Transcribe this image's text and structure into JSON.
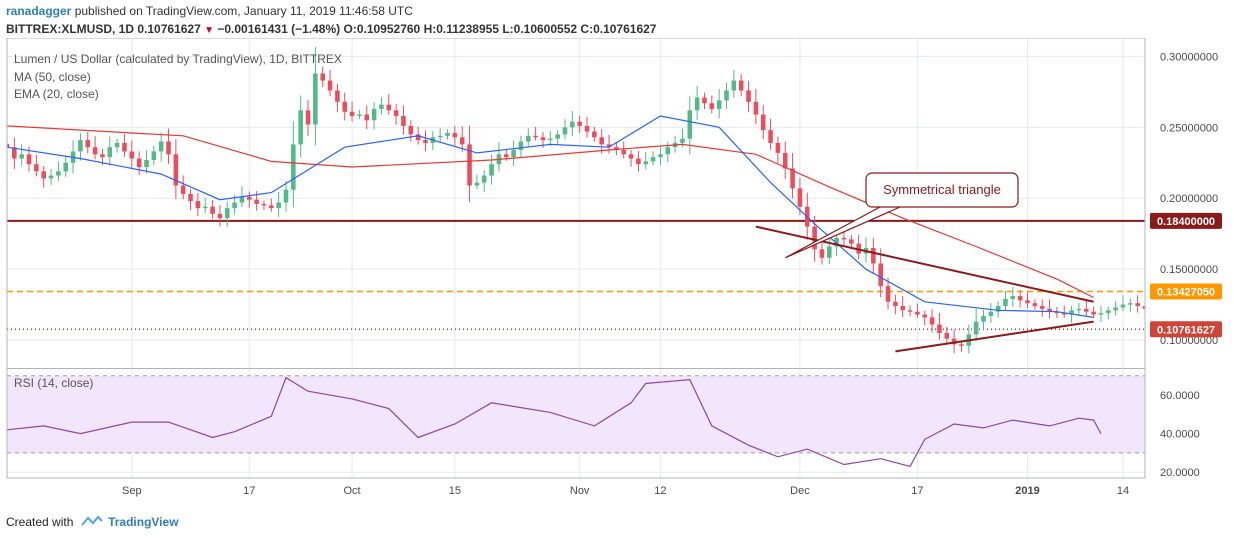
{
  "publish": {
    "author": "ranadagger",
    "text": "published on TradingView.com, January 11, 2019 11:46:58 UTC"
  },
  "quote": {
    "symbol": "BITTREX:XLMUSD, 1D",
    "last": "0.10761627",
    "change": "−0.00161431 (−1.48%)",
    "o_label": "O:",
    "o": "0.10952760",
    "h_label": "H:",
    "h": "0.11238955",
    "l_label": "L:",
    "l": "0.10600552",
    "c_label": "C:",
    "c": "0.10761627",
    "down_color": "#d0021b"
  },
  "indicators": {
    "title": "Lumen / US Dollar (calculated by TradingView), 1D, BITTREX",
    "ma": "MA (50, close)",
    "ema": "EMA (20, close)",
    "rsi": "RSI (14, close)"
  },
  "footer": {
    "created": "Created with",
    "brand": "TradingView"
  },
  "chart_data": {
    "type": "candlestick",
    "title": "Lumen / US Dollar (calculated by TradingView), 1D, BITTREX",
    "price_axis": {
      "ticks": [
        "0.30000000",
        "0.25000000",
        "0.20000000",
        "0.15000000",
        "0.10000000"
      ],
      "tick_values": [
        0.3,
        0.25,
        0.2,
        0.15,
        0.1
      ],
      "range": [
        0.081,
        0.313
      ]
    },
    "rsi_axis": {
      "ticks": [
        "60.0000",
        "40.0000",
        "20.0000"
      ],
      "tick_values": [
        60,
        40,
        20
      ],
      "range": [
        17,
        73
      ],
      "band": [
        30,
        70
      ]
    },
    "time_axis": {
      "labels": [
        "Sep",
        "17",
        "Oct",
        "15",
        "Nov",
        "12",
        "Dec",
        "17",
        "2019",
        "14"
      ],
      "label_dates": [
        "2018-09-01",
        "2018-09-17",
        "2018-10-01",
        "2018-10-15",
        "2018-11-01",
        "2018-11-12",
        "2018-12-01",
        "2018-12-17",
        "2019-01-01",
        "2019-01-14"
      ],
      "bold_label": "2019",
      "range": [
        "2018-08-15",
        "2019-01-17"
      ]
    },
    "levels": [
      {
        "name": "resistance",
        "value": 0.184,
        "label": "0.18400000",
        "color": "#8b1a1a",
        "style": "solid"
      },
      {
        "name": "breakout",
        "value": 0.1342705,
        "label": "0.13427050",
        "color": "#ff9800",
        "style": "dashed"
      },
      {
        "name": "last-price",
        "value": 0.10761627,
        "label": "0.10761627",
        "color": "#c0392b",
        "style": "dotted"
      }
    ],
    "trendlines": [
      {
        "name": "upper",
        "from": [
          "2018-11-25",
          0.18
        ],
        "to": [
          "2019-01-10",
          0.127
        ]
      },
      {
        "name": "lower",
        "from": [
          "2018-12-14",
          0.092
        ],
        "to": [
          "2019-01-10",
          0.113
        ]
      }
    ],
    "annotation": {
      "text": "Symmetrical triangle",
      "points_to": [
        "2018-11-29",
        0.158
      ],
      "color": "#8b1a1a"
    },
    "colors": {
      "up": "#53b987",
      "down": "#eb4d5c",
      "ma50": "#e53935",
      "ema20": "#2962ff",
      "rsi": "#8e44ad",
      "rsi_bg": "#f1e6fb",
      "grid": "#e6e9ee"
    },
    "series": [
      {
        "name": "XLMUSD",
        "step_days": 1,
        "start_date": "2018-08-15",
        "close_start": 0.236,
        "closes": [
          0.236,
          0.228,
          0.231,
          0.224,
          0.219,
          0.214,
          0.216,
          0.219,
          0.225,
          0.233,
          0.241,
          0.236,
          0.231,
          0.229,
          0.236,
          0.239,
          0.233,
          0.228,
          0.222,
          0.227,
          0.233,
          0.24,
          0.231,
          0.209,
          0.203,
          0.198,
          0.193,
          0.194,
          0.189,
          0.186,
          0.193,
          0.197,
          0.201,
          0.199,
          0.196,
          0.195,
          0.193,
          0.197,
          0.206,
          0.238,
          0.262,
          0.252,
          0.288,
          0.283,
          0.276,
          0.268,
          0.261,
          0.258,
          0.259,
          0.255,
          0.263,
          0.266,
          0.262,
          0.258,
          0.251,
          0.245,
          0.241,
          0.239,
          0.243,
          0.244,
          0.246,
          0.243,
          0.238,
          0.209,
          0.211,
          0.216,
          0.224,
          0.231,
          0.229,
          0.234,
          0.24,
          0.244,
          0.243,
          0.241,
          0.242,
          0.245,
          0.25,
          0.254,
          0.251,
          0.247,
          0.243,
          0.238,
          0.236,
          0.234,
          0.231,
          0.228,
          0.224,
          0.226,
          0.229,
          0.231,
          0.236,
          0.239,
          0.242,
          0.262,
          0.271,
          0.267,
          0.263,
          0.269,
          0.276,
          0.283,
          0.276,
          0.268,
          0.259,
          0.248,
          0.239,
          0.232,
          0.221,
          0.207,
          0.194,
          0.18,
          0.164,
          0.158,
          0.166,
          0.172,
          0.171,
          0.168,
          0.161,
          0.165,
          0.154,
          0.138,
          0.127,
          0.124,
          0.121,
          0.12,
          0.118,
          0.116,
          0.111,
          0.105,
          0.101,
          0.097,
          0.096,
          0.104,
          0.113,
          0.117,
          0.12,
          0.124,
          0.129,
          0.131,
          0.128,
          0.126,
          0.124,
          0.122,
          0.12,
          0.119,
          0.118,
          0.121,
          0.122,
          0.12,
          0.118,
          0.119,
          0.121,
          0.123,
          0.125,
          0.126,
          0.124,
          0.122,
          0.119,
          0.1076
        ]
      },
      {
        "name": "MA (50, close)",
        "points": [
          [
            "2018-08-15",
            0.251
          ],
          [
            "2018-09-01",
            0.246
          ],
          [
            "2018-09-08",
            0.244
          ],
          [
            "2018-09-20",
            0.226
          ],
          [
            "2018-10-01",
            0.222
          ],
          [
            "2018-10-20",
            0.227
          ],
          [
            "2018-11-05",
            0.234
          ],
          [
            "2018-11-15",
            0.238
          ],
          [
            "2018-11-25",
            0.231
          ],
          [
            "2018-12-05",
            0.208
          ],
          [
            "2018-12-15",
            0.186
          ],
          [
            "2018-12-25",
            0.166
          ],
          [
            "2019-01-05",
            0.143
          ],
          [
            "2019-01-10",
            0.13
          ]
        ]
      },
      {
        "name": "EMA (20, close)",
        "points": [
          [
            "2018-08-15",
            0.236
          ],
          [
            "2018-08-25",
            0.228
          ],
          [
            "2018-09-05",
            0.217
          ],
          [
            "2018-09-13",
            0.199
          ],
          [
            "2018-09-20",
            0.204
          ],
          [
            "2018-09-30",
            0.236
          ],
          [
            "2018-10-10",
            0.244
          ],
          [
            "2018-10-18",
            0.232
          ],
          [
            "2018-10-28",
            0.238
          ],
          [
            "2018-11-05",
            0.236
          ],
          [
            "2018-11-12",
            0.258
          ],
          [
            "2018-11-20",
            0.25
          ],
          [
            "2018-11-27",
            0.211
          ],
          [
            "2018-12-03",
            0.182
          ],
          [
            "2018-12-10",
            0.15
          ],
          [
            "2018-12-18",
            0.127
          ],
          [
            "2018-12-28",
            0.121
          ],
          [
            "2019-01-05",
            0.12
          ],
          [
            "2019-01-10",
            0.116
          ]
        ]
      },
      {
        "name": "RSI (14, close)",
        "points": [
          [
            "2018-08-15",
            42
          ],
          [
            "2018-08-20",
            44
          ],
          [
            "2018-08-25",
            40
          ],
          [
            "2018-09-01",
            46
          ],
          [
            "2018-09-06",
            46
          ],
          [
            "2018-09-12",
            38
          ],
          [
            "2018-09-15",
            41
          ],
          [
            "2018-09-20",
            49
          ],
          [
            "2018-09-22",
            69
          ],
          [
            "2018-09-25",
            62
          ],
          [
            "2018-10-01",
            58
          ],
          [
            "2018-10-06",
            53
          ],
          [
            "2018-10-10",
            38
          ],
          [
            "2018-10-15",
            45
          ],
          [
            "2018-10-20",
            56
          ],
          [
            "2018-10-28",
            51
          ],
          [
            "2018-11-03",
            44
          ],
          [
            "2018-11-08",
            56
          ],
          [
            "2018-11-10",
            66
          ],
          [
            "2018-11-16",
            68
          ],
          [
            "2018-11-19",
            44
          ],
          [
            "2018-11-24",
            34
          ],
          [
            "2018-11-28",
            28
          ],
          [
            "2018-12-02",
            32
          ],
          [
            "2018-12-07",
            24
          ],
          [
            "2018-12-12",
            27
          ],
          [
            "2018-12-16",
            23
          ],
          [
            "2018-12-18",
            37
          ],
          [
            "2018-12-22",
            45
          ],
          [
            "2018-12-26",
            43
          ],
          [
            "2018-12-30",
            47
          ],
          [
            "2019-01-04",
            44
          ],
          [
            "2019-01-08",
            48
          ],
          [
            "2019-01-10",
            47
          ],
          [
            "2019-01-11",
            40
          ]
        ]
      }
    ]
  }
}
